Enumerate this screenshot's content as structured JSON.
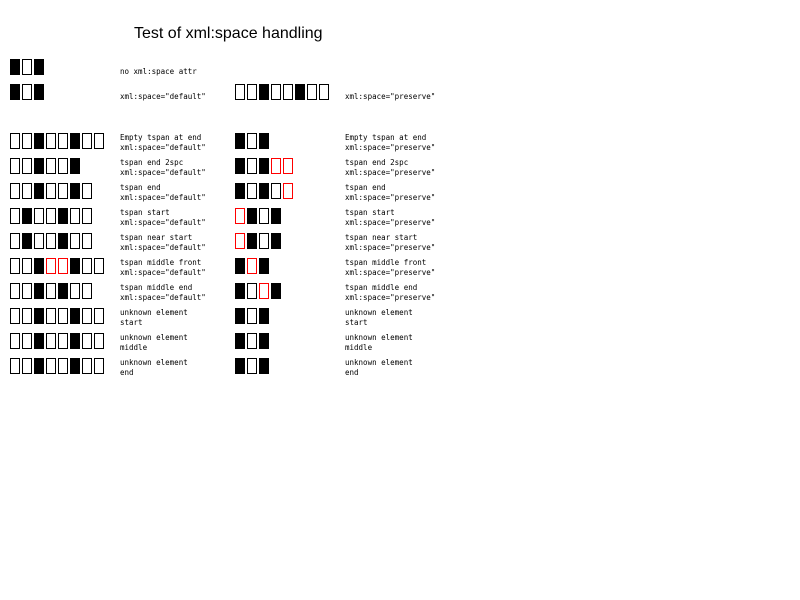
{
  "page_title": "Test of xml:space handling",
  "glyph_legend": {
    "b": "filled black box",
    "w": "outlined box",
    "r": "red outlined box"
  },
  "rows": [
    {
      "left_glyphs": "bwb",
      "left_label": [
        "no xml:space attr"
      ],
      "right_glyphs": "",
      "right_label": []
    },
    {
      "left_glyphs": "bwb",
      "left_label": [
        "xml:space=\"default\""
      ],
      "right_glyphs": "wwbwwbww",
      "right_label": [
        "xml:space=\"preserve\""
      ]
    },
    {
      "left_glyphs": "wwbwwbww",
      "left_label": [
        "Empty tspan at end",
        "xml:space=\"default\""
      ],
      "right_glyphs": "bwb",
      "right_label": [
        "Empty tspan at end",
        "xml:space=\"preserve\""
      ]
    },
    {
      "left_glyphs": "wwbwwb",
      "left_label": [
        "tspan end 2spc",
        "xml:space=\"default\""
      ],
      "right_glyphs": "bwbrr",
      "right_label": [
        "tspan end 2spc",
        "xml:space=\"preserve\""
      ]
    },
    {
      "left_glyphs": "wwbwwbw",
      "left_label": [
        "tspan end",
        "xml:space=\"default\""
      ],
      "right_glyphs": "bwbwr",
      "right_label": [
        "tspan end",
        "xml:space=\"preserve\""
      ]
    },
    {
      "left_glyphs": "wbwwbww",
      "left_label": [
        "tspan start",
        "xml:space=\"default\""
      ],
      "right_glyphs": "rbwb",
      "right_label": [
        "tspan start",
        "xml:space=\"preserve\""
      ]
    },
    {
      "left_glyphs": "wbwwbww",
      "left_label": [
        "tspan near start",
        "xml:space=\"default\""
      ],
      "right_glyphs": "rbwb",
      "right_label": [
        "tspan near start",
        "xml:space=\"preserve\""
      ]
    },
    {
      "left_glyphs": "wwbrrbww",
      "left_label": [
        "tspan middle front",
        "xml:space=\"default\""
      ],
      "right_glyphs": "brb",
      "right_label": [
        "tspan middle front",
        "xml:space=\"preserve\""
      ]
    },
    {
      "left_glyphs": "wwbwbww",
      "left_label": [
        "tspan middle end",
        "xml:space=\"default\""
      ],
      "right_glyphs": "bwrb",
      "right_label": [
        "tspan middle end",
        "xml:space=\"preserve\""
      ]
    },
    {
      "left_glyphs": "wwbwwbww",
      "left_label": [
        "unknown element",
        "start"
      ],
      "right_glyphs": "bwb",
      "right_label": [
        "unknown element",
        "start"
      ]
    },
    {
      "left_glyphs": "wwbwwbww",
      "left_label": [
        "unknown element",
        "middle"
      ],
      "right_glyphs": "bwb",
      "right_label": [
        "unknown element",
        "middle"
      ]
    },
    {
      "left_glyphs": "wwbwwbww",
      "left_label": [
        "unknown element",
        "end"
      ],
      "right_glyphs": "bwb",
      "right_label": [
        "unknown element",
        "end"
      ]
    }
  ]
}
